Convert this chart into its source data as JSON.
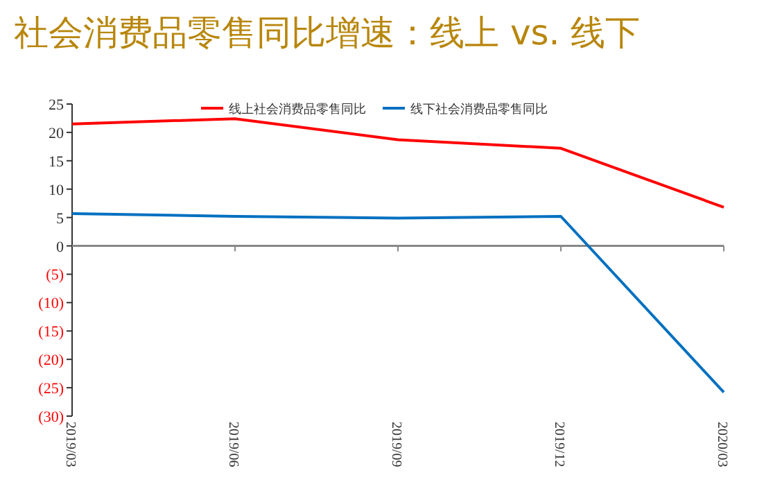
{
  "chart_data": {
    "type": "line",
    "title": "社会消费品零售同比增速：线上 vs. 线下",
    "categories": [
      "2019/03",
      "2019/06",
      "2019/09",
      "2019/12",
      "2020/03"
    ],
    "series": [
      {
        "name": "线上社会消费品零售同比",
        "color": "#ff0000",
        "values": [
          21.5,
          22.4,
          18.7,
          17.2,
          6.8
        ]
      },
      {
        "name": "线下社会消费品零售同比",
        "color": "#0070c0",
        "values": [
          5.7,
          5.2,
          4.9,
          5.2,
          -25.8
        ]
      }
    ],
    "ylim": [
      -30,
      25
    ],
    "yticks": [
      {
        "value": -30,
        "label": "(30)"
      },
      {
        "value": -25,
        "label": "(25)"
      },
      {
        "value": -20,
        "label": "(20)"
      },
      {
        "value": -15,
        "label": "(15)"
      },
      {
        "value": -10,
        "label": "(10)"
      },
      {
        "value": -5,
        "label": "(5)"
      },
      0,
      5,
      10,
      15,
      20,
      25
    ],
    "legend": "top",
    "marker": "none",
    "line_style": "solid"
  }
}
